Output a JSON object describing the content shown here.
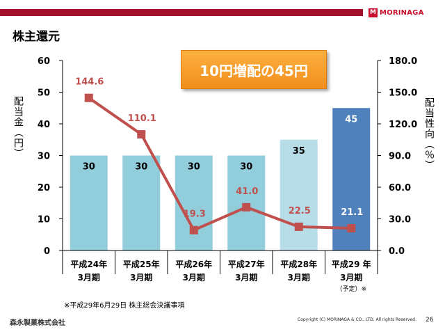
{
  "header": {
    "brand_mark": "M",
    "brand_name": "MORINAGA",
    "page_title": "株主還元",
    "callout": "10円増配の45円"
  },
  "chart_data": {
    "type": "bar",
    "title": "",
    "categories": [
      {
        "line1": "平成24年",
        "line2": "3月期",
        "note": ""
      },
      {
        "line1": "平成25年",
        "line2": "3月期",
        "note": ""
      },
      {
        "line1": "平成26年",
        "line2": "3月期",
        "note": ""
      },
      {
        "line1": "平成27年",
        "line2": "3月期",
        "note": ""
      },
      {
        "line1": "平成28年",
        "line2": "3月期",
        "note": ""
      },
      {
        "line1": "平成29 年",
        "line2": "3月期",
        "note": "（予定）※"
      }
    ],
    "series": [
      {
        "name": "配当金",
        "type": "bar",
        "axis": "left",
        "values": [
          30,
          30,
          30,
          30,
          35,
          45
        ],
        "labels": [
          "30",
          "30",
          "30",
          "30",
          "35",
          "45"
        ],
        "colors": [
          "#92cddc",
          "#92cddc",
          "#92cddc",
          "#92cddc",
          "#b7dde8",
          "#4f81bd"
        ],
        "label_colors": [
          "#000000",
          "#000000",
          "#000000",
          "#000000",
          "#000000",
          "#ffffff"
        ]
      },
      {
        "name": "配当性向",
        "type": "line",
        "axis": "right",
        "values": [
          144.6,
          110.1,
          19.3,
          41.0,
          22.5,
          21.1
        ],
        "labels": [
          "144.6",
          "110.1",
          "19.3",
          "41.0",
          "22.5",
          "21.1"
        ],
        "color": "#c0504d",
        "label_colors": [
          "#c0504d",
          "#c0504d",
          "#c0504d",
          "#c0504d",
          "#c0504d",
          "#ffffff"
        ]
      }
    ],
    "ylim": [
      0,
      60
    ],
    "yticks": [
      "0",
      "10",
      "20",
      "30",
      "40",
      "50",
      "60"
    ],
    "ylabel": "配当金（円）",
    "y2lim": [
      0,
      180
    ],
    "y2ticks": [
      "0.0",
      "30.0",
      "60.0",
      "90.0",
      "120.0",
      "150.0",
      "180.0"
    ],
    "y2label": "配当性向（％）",
    "grid": false
  },
  "footer": {
    "footnote": "※平成29年6月29日 株主総会決議事項",
    "company": "森永製菓株式会社",
    "copyright": "Copyright (C) MORINAGA & CO., LTD. All rights Reserved.",
    "page_number": "26"
  },
  "colors": {
    "top_bar": "#a3102b",
    "callout_bg": "#f6a12e",
    "line": "#c0504d"
  }
}
